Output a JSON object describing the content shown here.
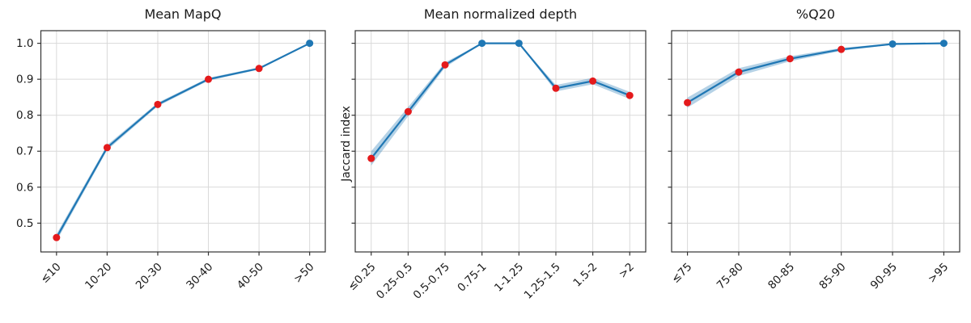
{
  "colors": {
    "line": "#1f77b4",
    "band": "#1f77b4",
    "band_opacity": 0.33,
    "marker_red": "#e41a1c",
    "marker_blue": "#1f77b4",
    "grid": "#d9d9d9",
    "spine": "#333333",
    "text": "#1a1a1a"
  },
  "chart_data": [
    {
      "type": "line",
      "title": "Mean MapQ",
      "ylabel": "",
      "categories": [
        "≤10",
        "10-20",
        "20-30",
        "30-40",
        "40-50",
        ">50"
      ],
      "values": [
        0.46,
        0.71,
        0.83,
        0.9,
        0.93,
        1.0
      ],
      "ci_halfwidth": [
        0.01,
        0.007,
        0.005,
        0.004,
        0.003,
        0.001
      ],
      "marker_colors": [
        "red",
        "red",
        "red",
        "red",
        "red",
        "blue"
      ],
      "yticks": [
        0.5,
        0.6,
        0.7,
        0.8,
        0.9,
        1.0
      ],
      "ytick_labels": [
        "0.5",
        "0.6",
        "0.7",
        "0.8",
        "0.9",
        "1.0"
      ],
      "show_ytick_labels": true,
      "ylim": [
        0.42,
        1.035
      ],
      "grid": true,
      "legend": "none"
    },
    {
      "type": "line",
      "title": "Mean normalized depth",
      "ylabel": "Jaccard index",
      "categories": [
        "≤0.25",
        "0.25-0.5",
        "0.5-0.75",
        "0.75-1",
        "1-1.25",
        "1.25-1.5",
        "1.5-2",
        ">2"
      ],
      "values": [
        0.68,
        0.81,
        0.94,
        1.0,
        1.0,
        0.875,
        0.895,
        0.855
      ],
      "ci_halfwidth": [
        0.02,
        0.013,
        0.007,
        0.001,
        0.001,
        0.009,
        0.009,
        0.01
      ],
      "marker_colors": [
        "red",
        "red",
        "red",
        "blue",
        "blue",
        "red",
        "red",
        "red"
      ],
      "yticks": [
        0.5,
        0.6,
        0.7,
        0.8,
        0.9,
        1.0
      ],
      "ytick_labels": [],
      "show_ytick_labels": false,
      "ylim": [
        0.42,
        1.035
      ],
      "grid": true,
      "legend": "none"
    },
    {
      "type": "line",
      "title": "%Q20",
      "ylabel": "",
      "categories": [
        "≤75",
        "75-80",
        "80-85",
        "85-90",
        "90-95",
        ">95"
      ],
      "values": [
        0.835,
        0.92,
        0.957,
        0.983,
        0.998,
        1.0
      ],
      "ci_halfwidth": [
        0.014,
        0.011,
        0.007,
        0.004,
        0.002,
        0.001
      ],
      "marker_colors": [
        "red",
        "red",
        "red",
        "red",
        "blue",
        "blue"
      ],
      "yticks": [
        0.5,
        0.6,
        0.7,
        0.8,
        0.9,
        1.0
      ],
      "ytick_labels": [],
      "show_ytick_labels": false,
      "ylim": [
        0.42,
        1.035
      ],
      "grid": true,
      "legend": "none"
    }
  ]
}
